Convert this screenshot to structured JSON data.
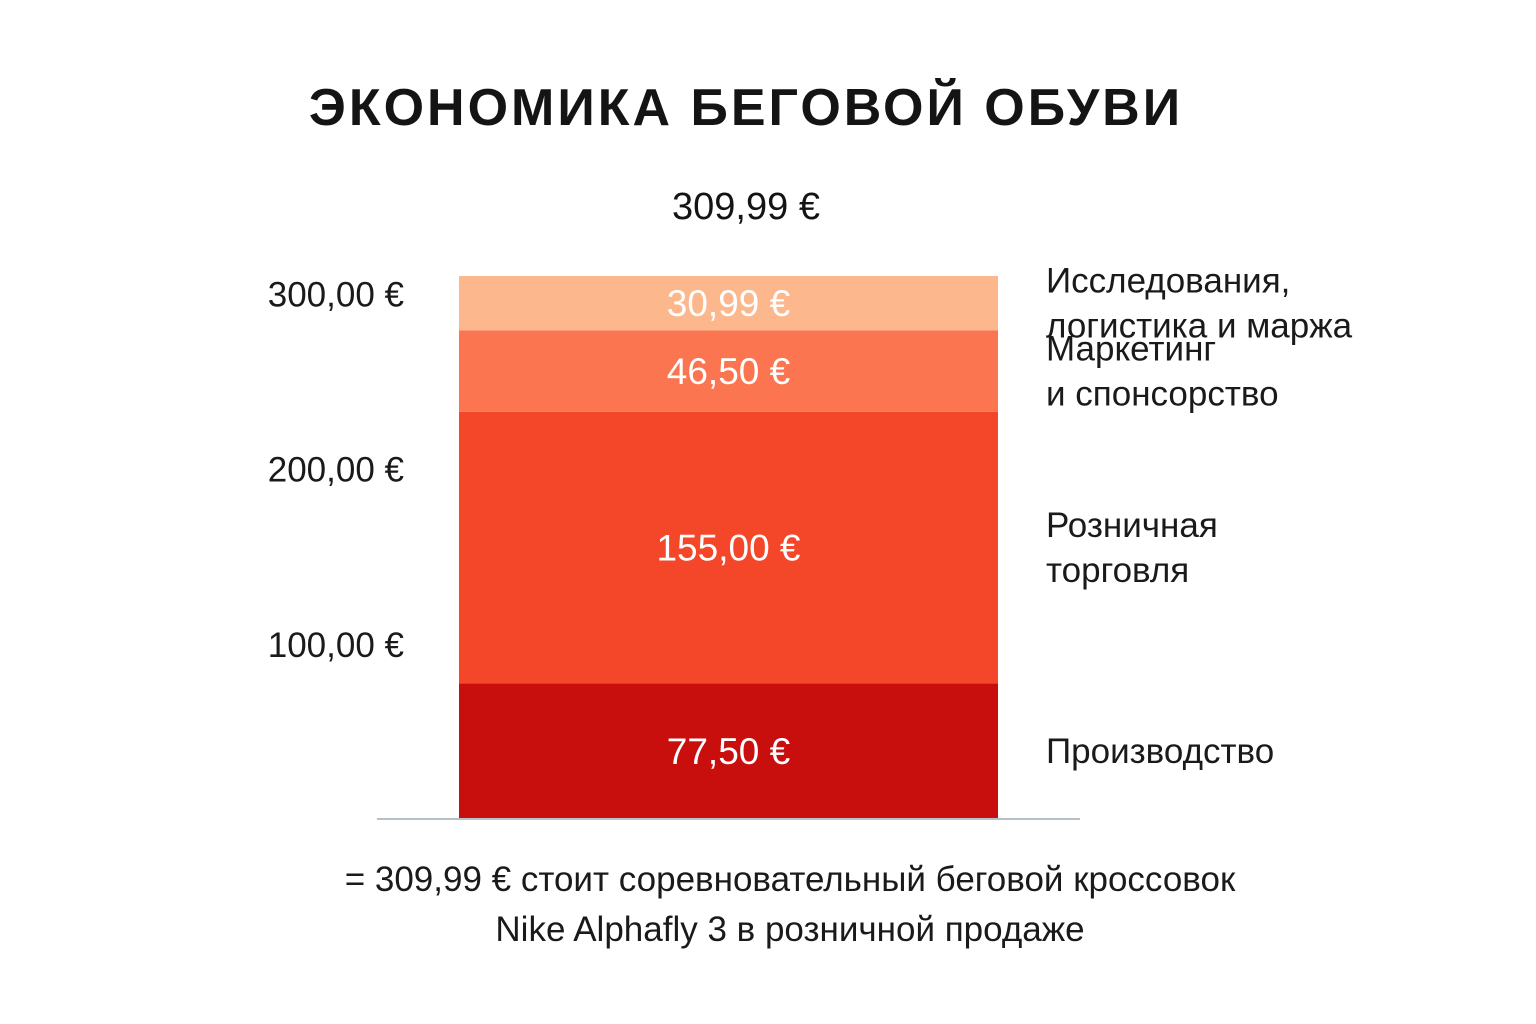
{
  "title": "ЭКОНОМИКА БЕГОВОЙ ОБУВИ",
  "total_label": "309,99 €",
  "caption": {
    "line1": "= 309,99 € стоит соревновательный беговой кроссовок",
    "line2": "Nike Alphafly 3 в розничной продаже"
  },
  "chart_data": {
    "type": "bar",
    "stacked": true,
    "title": "ЭКОНОМИКА БЕГОВОЙ ОБУВИ",
    "categories": [
      "Nike Alphafly 3"
    ],
    "total": 309.99,
    "total_label": "309,99 €",
    "y_ticks": [
      {
        "value": 100,
        "label": "100,00 €"
      },
      {
        "value": 200,
        "label": "200,00 €"
      },
      {
        "value": 300,
        "label": "300,00 €"
      }
    ],
    "grid": false,
    "legend": "right-inline",
    "series": [
      {
        "name": "Производство",
        "name_lines": [
          "Производство"
        ],
        "value": 77.5,
        "value_label": "77,50 €",
        "color": "#c90e0e"
      },
      {
        "name": "Розничная торговля",
        "name_lines": [
          "Розничная",
          "торговля"
        ],
        "value": 155.0,
        "value_label": "155,00 €",
        "color": "#f4472a"
      },
      {
        "name": "Маркетинг и спонсорство",
        "name_lines": [
          "Маркетинг",
          "и спонсорство"
        ],
        "value": 46.5,
        "value_label": "46,50 €",
        "color": "#fb7550"
      },
      {
        "name": "Исследования, логистика и маржа",
        "name_lines": [
          "Исследования,",
          "логистика и маржа"
        ],
        "value": 30.99,
        "value_label": "30,99 €",
        "color": "#fdb78c"
      }
    ]
  }
}
